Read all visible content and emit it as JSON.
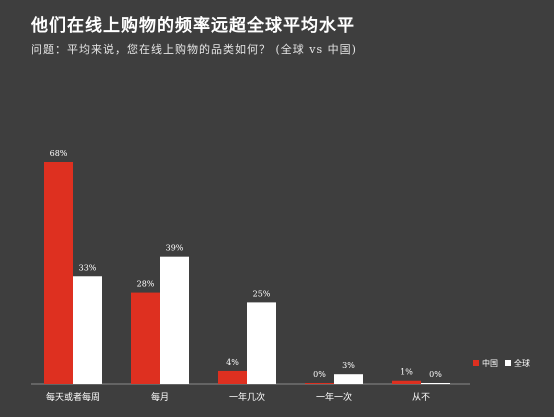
{
  "chart_data": {
    "type": "bar",
    "title": "他们在线上购物的频率远超全球平均水平",
    "subtitle": "问题：平均来说，您在线上购物的品类如何？ (全球 vs 中国)",
    "categories": [
      "每天或者每周",
      "每月",
      "一年几次",
      "一年一次",
      "从不"
    ],
    "series": [
      {
        "name": "中国",
        "color": "#de3020",
        "values": [
          68,
          28,
          4,
          0,
          1
        ],
        "labels": [
          "68%",
          "28%",
          "4%",
          "0%",
          "1%"
        ]
      },
      {
        "name": "全球",
        "color": "#ffffff",
        "values": [
          33,
          39,
          25,
          3,
          0
        ],
        "labels": [
          "33%",
          "39%",
          "25%",
          "3%",
          "0%"
        ]
      }
    ],
    "ylim": [
      0,
      75
    ],
    "grid": false,
    "legend_position": "right"
  }
}
